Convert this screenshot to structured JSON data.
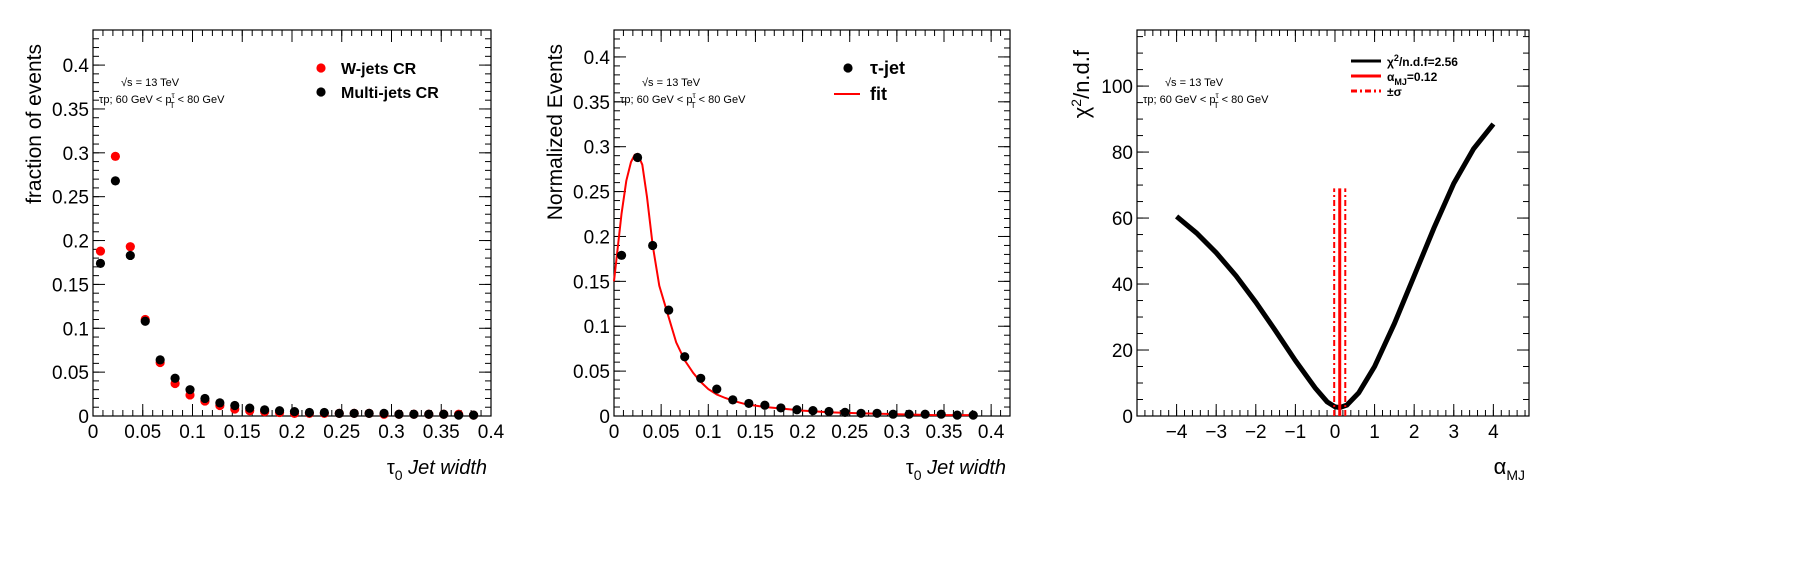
{
  "chart_data": [
    {
      "type": "scatter",
      "xlabel": "Jet width",
      "xlabel_prefix": "τ",
      "xlabel_sub": "0",
      "ylabel": "fraction of events",
      "xlim": [
        0,
        0.4
      ],
      "ylim": [
        0,
        0.44
      ],
      "xticks": [
        "0",
        "0.05",
        "0.1",
        "0.15",
        "0.2",
        "0.25",
        "0.3",
        "0.35",
        "0.4"
      ],
      "yticks": [
        "0",
        "0.05",
        "0.1",
        "0.15",
        "0.2",
        "0.25",
        "0.3",
        "0.35",
        "0.4"
      ],
      "annotation_energy": "√s = 13 TeV",
      "annotation_selection": "τp; 60 GeV < p",
      "annotation_selection_sup": "τ",
      "annotation_selection_sub": "T",
      "annotation_selection_tail": " < 80 GeV",
      "legend_position": "top-right",
      "grid": false,
      "x": [
        0.0075,
        0.0225,
        0.0375,
        0.0525,
        0.0675,
        0.0825,
        0.0975,
        0.1125,
        0.1275,
        0.1425,
        0.1575,
        0.1725,
        0.1875,
        0.2025,
        0.2175,
        0.2325,
        0.2475,
        0.2625,
        0.2775,
        0.2925,
        0.3075,
        0.3225,
        0.3375,
        0.3525,
        0.3675,
        0.3825
      ],
      "series": [
        {
          "name": "W-jets CR",
          "color": "#ff0000",
          "values": [
            0.188,
            0.296,
            0.193,
            0.11,
            0.061,
            0.037,
            0.024,
            0.017,
            0.012,
            0.008,
            0.006,
            0.005,
            0.004,
            0.003,
            0.003,
            0.003,
            0.003,
            0.003,
            0.003,
            0.002,
            0.002,
            0.002,
            0.002,
            0.002,
            0.002,
            0.001
          ]
        },
        {
          "name": "Multi-jets CR",
          "color": "#000000",
          "values": [
            0.174,
            0.268,
            0.183,
            0.108,
            0.064,
            0.043,
            0.03,
            0.02,
            0.015,
            0.012,
            0.009,
            0.007,
            0.006,
            0.005,
            0.004,
            0.004,
            0.003,
            0.003,
            0.003,
            0.003,
            0.002,
            0.002,
            0.002,
            0.002,
            0.001,
            0.001
          ]
        }
      ]
    },
    {
      "type": "scatter",
      "xlabel": "Jet width",
      "xlabel_prefix": "τ",
      "xlabel_sub": "0",
      "ylabel": "Normalized Events",
      "xlim": [
        0,
        0.42
      ],
      "ylim": [
        0,
        0.43
      ],
      "xticks": [
        "0",
        "0.05",
        "0.1",
        "0.15",
        "0.2",
        "0.25",
        "0.3",
        "0.35",
        "0.4"
      ],
      "yticks": [
        "0",
        "0.05",
        "0.1",
        "0.15",
        "0.2",
        "0.25",
        "0.3",
        "0.35",
        "0.4"
      ],
      "annotation_energy": "√s = 13 TeV",
      "annotation_selection": "τp; 60 GeV < p",
      "annotation_selection_sup": "τ",
      "annotation_selection_sub": "T",
      "annotation_selection_tail": " < 80 GeV",
      "legend_position": "top-right",
      "grid": false,
      "x": [
        0.008,
        0.025,
        0.041,
        0.058,
        0.075,
        0.092,
        0.109,
        0.126,
        0.143,
        0.16,
        0.177,
        0.194,
        0.211,
        0.228,
        0.245,
        0.262,
        0.279,
        0.296,
        0.313,
        0.33,
        0.347,
        0.364,
        0.381
      ],
      "series": [
        {
          "name": "τ-jet",
          "color": "#000000",
          "values": [
            0.179,
            0.288,
            0.19,
            0.118,
            0.066,
            0.042,
            0.03,
            0.018,
            0.014,
            0.012,
            0.009,
            0.007,
            0.006,
            0.005,
            0.004,
            0.003,
            0.003,
            0.002,
            0.002,
            0.002,
            0.002,
            0.001,
            0.001
          ]
        },
        {
          "name": "fit",
          "color": "#ff0000",
          "kind": "line",
          "x": [
            0.0,
            0.004,
            0.008,
            0.013,
            0.018,
            0.022,
            0.025,
            0.03,
            0.035,
            0.041,
            0.048,
            0.058,
            0.066,
            0.075,
            0.084,
            0.092,
            0.1,
            0.109,
            0.118,
            0.126,
            0.14,
            0.16,
            0.18,
            0.2,
            0.23,
            0.26,
            0.3,
            0.34,
            0.381
          ],
          "values": [
            0.15,
            0.188,
            0.225,
            0.262,
            0.283,
            0.291,
            0.292,
            0.28,
            0.244,
            0.19,
            0.145,
            0.11,
            0.082,
            0.062,
            0.048,
            0.038,
            0.03,
            0.024,
            0.02,
            0.017,
            0.013,
            0.01,
            0.008,
            0.006,
            0.004,
            0.003,
            0.002,
            0.001,
            0.001
          ]
        }
      ]
    },
    {
      "type": "line",
      "xlabel": "α",
      "xlabel_sub": "MJ",
      "ylabel": "χ",
      "ylabel_sup": "2",
      "ylabel_tail": "/n.d.f",
      "xlim": [
        -5,
        4.9
      ],
      "ylim": [
        0,
        117
      ],
      "xticks": [
        "−4",
        "−3",
        "−2",
        "−1",
        "0",
        "1",
        "2",
        "3",
        "4"
      ],
      "yticks": [
        "0",
        "20",
        "40",
        "60",
        "80",
        "100"
      ],
      "annotation_energy": "√s = 13 TeV",
      "annotation_selection": "τp; 60 GeV < p",
      "annotation_selection_sup": "τ",
      "annotation_selection_sub": "T",
      "annotation_selection_tail": " < 80 GeV",
      "legend_position": "top-right",
      "grid": false,
      "legend": [
        {
          "label_main": "χ",
          "label_sup": "2",
          "label_tail": "/n.d.f=2.56",
          "color": "#000000",
          "style": "solid"
        },
        {
          "label_main": "α",
          "label_sub": "MJ",
          "label_tail": "=0.12",
          "color": "#ff0000",
          "style": "solid"
        },
        {
          "label_main": "±σ",
          "color": "#ff0000",
          "style": "dashdot"
        }
      ],
      "series": [
        {
          "name": "χ2/n.d.f",
          "color": "#000000",
          "x": [
            -4.0,
            -3.5,
            -3.0,
            -2.5,
            -2.0,
            -1.5,
            -1.0,
            -0.5,
            -0.2,
            0.0,
            0.12,
            0.3,
            0.6,
            1.0,
            1.5,
            2.0,
            2.5,
            3.0,
            3.5,
            4.0
          ],
          "values": [
            60.5,
            55.5,
            49.5,
            42.5,
            34.5,
            25.8,
            16.8,
            8.5,
            4.3,
            2.8,
            2.56,
            3.3,
            7.0,
            15.0,
            28.0,
            42.5,
            57.0,
            70.5,
            81.0,
            88.5
          ]
        },
        {
          "name": "α_MJ",
          "color": "#ff0000",
          "x_value": 0.12,
          "y_top": 69
        },
        {
          "name": "±σ",
          "color": "#ff0000",
          "x_values": [
            -0.02,
            0.26
          ],
          "y_top": 69
        }
      ]
    }
  ]
}
